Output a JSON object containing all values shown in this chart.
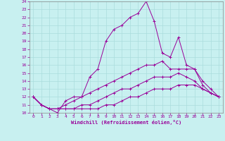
{
  "xlabel": "Windchill (Refroidissement éolien,°C)",
  "background_color": "#c8f0f0",
  "line_color": "#990099",
  "grid_color": "#aadddd",
  "xlim": [
    -0.5,
    23.5
  ],
  "ylim": [
    10,
    24
  ],
  "x_ticks": [
    0,
    1,
    2,
    3,
    4,
    5,
    6,
    7,
    8,
    9,
    10,
    11,
    12,
    13,
    14,
    15,
    16,
    17,
    18,
    19,
    20,
    21,
    22,
    23
  ],
  "y_ticks": [
    10,
    11,
    12,
    13,
    14,
    15,
    16,
    17,
    18,
    19,
    20,
    21,
    22,
    23,
    24
  ],
  "lines": [
    [
      12.0,
      11.0,
      10.5,
      10.0,
      11.5,
      12.0,
      12.0,
      14.5,
      15.5,
      19.0,
      20.5,
      21.0,
      22.0,
      22.5,
      24.0,
      21.5,
      17.5,
      17.0,
      19.5,
      16.0,
      15.5,
      13.5,
      12.5,
      12.0
    ],
    [
      12.0,
      11.0,
      10.5,
      10.5,
      11.0,
      11.5,
      12.0,
      12.5,
      13.0,
      13.5,
      14.0,
      14.5,
      15.0,
      15.5,
      16.0,
      16.0,
      16.5,
      15.5,
      15.5,
      15.5,
      15.5,
      14.0,
      13.0,
      12.0
    ],
    [
      12.0,
      11.0,
      10.5,
      10.5,
      10.5,
      10.5,
      11.0,
      11.0,
      11.5,
      12.0,
      12.5,
      13.0,
      13.0,
      13.5,
      14.0,
      14.5,
      14.5,
      14.5,
      15.0,
      14.5,
      14.0,
      13.0,
      12.5,
      12.0
    ],
    [
      12.0,
      11.0,
      10.5,
      10.5,
      10.5,
      10.5,
      10.5,
      10.5,
      10.5,
      11.0,
      11.0,
      11.5,
      12.0,
      12.0,
      12.5,
      13.0,
      13.0,
      13.0,
      13.5,
      13.5,
      13.5,
      13.0,
      12.5,
      12.0
    ]
  ]
}
